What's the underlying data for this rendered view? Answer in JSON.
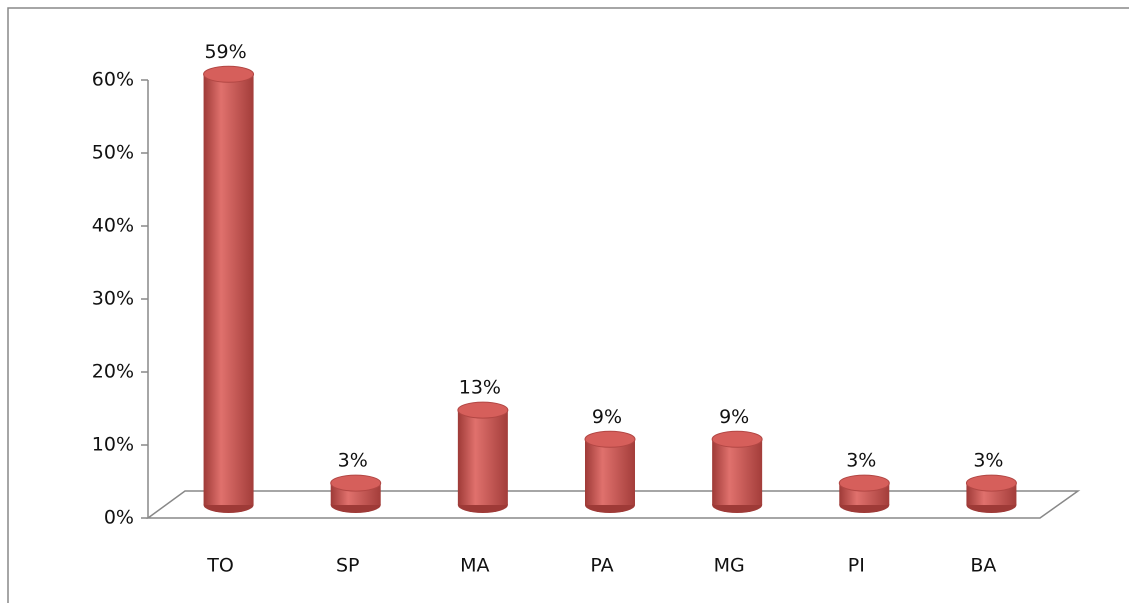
{
  "chart_data": {
    "type": "bar",
    "categories": [
      "TO",
      "SP",
      "MA",
      "PA",
      "MG",
      "PI",
      "BA"
    ],
    "values": [
      59,
      3,
      13,
      9,
      9,
      3,
      3
    ],
    "value_labels": [
      "59%",
      "3%",
      "13%",
      "9%",
      "9%",
      "3%",
      "3%"
    ],
    "color": "#c0504d",
    "ylim": [
      0,
      60
    ],
    "yticks": [
      {
        "value": 0,
        "label": "0%"
      },
      {
        "value": 10,
        "label": "10%"
      },
      {
        "value": 20,
        "label": "20%"
      },
      {
        "value": 30,
        "label": "30%"
      },
      {
        "value": 40,
        "label": "40%"
      },
      {
        "value": 50,
        "label": "50%"
      },
      {
        "value": 60,
        "label": "60%"
      }
    ],
    "grid": false
  }
}
